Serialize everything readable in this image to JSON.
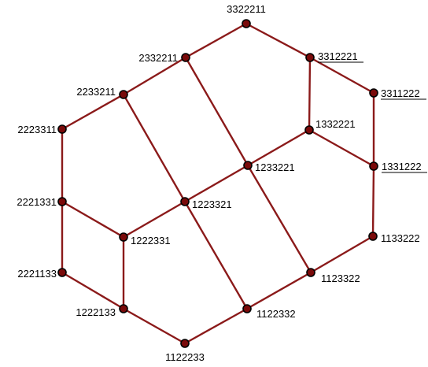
{
  "colors": {
    "edge": "#8b1a1a",
    "node": "#7a0a0a",
    "background": "#ffffff"
  },
  "nodes": [
    {
      "id": "3322211",
      "label": "3322211",
      "underlined": false
    },
    {
      "id": "2332211",
      "label": "2332211",
      "underlined": false
    },
    {
      "id": "3312221",
      "label": "3312221",
      "underlined": true
    },
    {
      "id": "2233211",
      "label": "2233211",
      "underlined": false
    },
    {
      "id": "3311222",
      "label": "3311222",
      "underlined": true
    },
    {
      "id": "1332221",
      "label": "1332221",
      "underlined": false
    },
    {
      "id": "2223311",
      "label": "2223311",
      "underlined": false
    },
    {
      "id": "1233221",
      "label": "1233221",
      "underlined": false
    },
    {
      "id": "1331222",
      "label": "1331222",
      "underlined": true
    },
    {
      "id": "2221331",
      "label": "2221331",
      "underlined": false
    },
    {
      "id": "1223321",
      "label": "1223321",
      "underlined": false
    },
    {
      "id": "1222331",
      "label": "1222331",
      "underlined": false
    },
    {
      "id": "1133222",
      "label": "1133222",
      "underlined": false
    },
    {
      "id": "2221133",
      "label": "2221133",
      "underlined": false
    },
    {
      "id": "1123322",
      "label": "1123322",
      "underlined": false
    },
    {
      "id": "1222133",
      "label": "1222133",
      "underlined": false
    },
    {
      "id": "1122332",
      "label": "1122332",
      "underlined": false
    },
    {
      "id": "1122233",
      "label": "1122233",
      "underlined": false
    }
  ],
  "edges": [
    [
      "3322211",
      "2332211"
    ],
    [
      "3322211",
      "3312221"
    ],
    [
      "2332211",
      "2233211"
    ],
    [
      "2332211",
      "1233221"
    ],
    [
      "3312221",
      "3311222"
    ],
    [
      "3312221",
      "1332221"
    ],
    [
      "2233211",
      "2223311"
    ],
    [
      "2233211",
      "1223321"
    ],
    [
      "1332221",
      "1233221"
    ],
    [
      "1332221",
      "1331222"
    ],
    [
      "3311222",
      "1331222"
    ],
    [
      "2223311",
      "2221331"
    ],
    [
      "1233221",
      "1223321"
    ],
    [
      "1233221",
      "1123322"
    ],
    [
      "1331222",
      "1133222"
    ],
    [
      "2221331",
      "1222331"
    ],
    [
      "2221331",
      "2221133"
    ],
    [
      "1223321",
      "1222331"
    ],
    [
      "1223321",
      "1122332"
    ],
    [
      "1222331",
      "1222133"
    ],
    [
      "2221133",
      "1222133"
    ],
    [
      "1133222",
      "1123322"
    ],
    [
      "1123322",
      "1122332"
    ],
    [
      "1222133",
      "1122233"
    ],
    [
      "1122332",
      "1122233"
    ]
  ]
}
